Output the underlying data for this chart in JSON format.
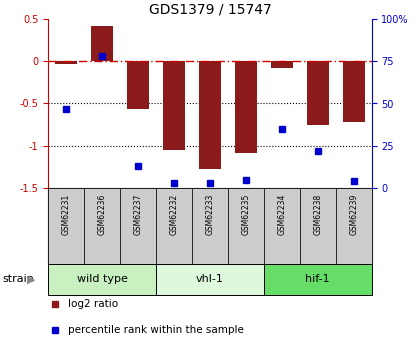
{
  "title": "GDS1379 / 15747",
  "samples": [
    "GSM62231",
    "GSM62236",
    "GSM62237",
    "GSM62232",
    "GSM62233",
    "GSM62235",
    "GSM62234",
    "GSM62238",
    "GSM62239"
  ],
  "log2_ratio": [
    -0.03,
    0.42,
    -0.57,
    -1.05,
    -1.28,
    -1.08,
    -0.08,
    -0.75,
    -0.72
  ],
  "percentile_rank": [
    47,
    78,
    13,
    3,
    3,
    5,
    35,
    22,
    4
  ],
  "groups": [
    {
      "label": "wild type",
      "start": 0,
      "end": 3,
      "color": "#c8f0c0"
    },
    {
      "label": "vhl-1",
      "start": 3,
      "end": 6,
      "color": "#ddf8dd"
    },
    {
      "label": "hif-1",
      "start": 6,
      "end": 9,
      "color": "#66dd66"
    }
  ],
  "ylim_left": [
    -1.5,
    0.5
  ],
  "ylim_right": [
    0,
    100
  ],
  "bar_color": "#8b1a1a",
  "dot_color": "#0000cc",
  "hline_color": "#cc0000",
  "grid_color": "#000000",
  "bg_color": "#ffffff",
  "tick_box_color": "#cccccc",
  "right_yticks": [
    0,
    25,
    50,
    75,
    100
  ],
  "right_yticklabels": [
    "0",
    "25",
    "50",
    "75",
    "100%"
  ],
  "left_yticks": [
    -1.5,
    -1.0,
    -0.5,
    0.0,
    0.5
  ],
  "left_yticklabels": [
    "-1.5",
    "-1",
    "-0.5",
    "0",
    "0.5"
  ],
  "strain_label": "strain",
  "legend": [
    {
      "color": "#8b1a1a",
      "label": "log2 ratio"
    },
    {
      "color": "#0000cc",
      "label": "percentile rank within the sample"
    }
  ]
}
